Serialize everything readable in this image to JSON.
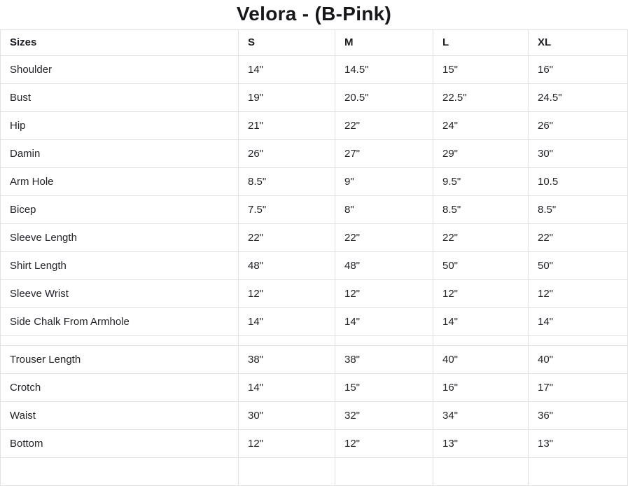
{
  "title": "Velora - (B-Pink)",
  "table": {
    "columns": [
      "Sizes",
      "S",
      "M",
      "L",
      "XL"
    ],
    "rows": [
      {
        "label": "Shoulder",
        "values": [
          "14\"",
          "14.5\"",
          "15\"",
          "16\""
        ]
      },
      {
        "label": "Bust",
        "values": [
          "19\"",
          "20.5\"",
          "22.5\"",
          "24.5\""
        ]
      },
      {
        "label": "Hip",
        "values": [
          "21\"",
          "22\"",
          "24\"",
          "26\""
        ]
      },
      {
        "label": "Damin",
        "values": [
          "26\"",
          "27\"",
          "29\"",
          "30\""
        ]
      },
      {
        "label": "Arm Hole",
        "values": [
          "8.5\"",
          "9\"",
          "9.5\"",
          "10.5"
        ]
      },
      {
        "label": "Bicep",
        "values": [
          "7.5\"",
          "8\"",
          "8.5\"",
          "8.5\""
        ]
      },
      {
        "label": "Sleeve Length",
        "values": [
          "22\"",
          "22\"",
          "22\"",
          "22\""
        ]
      },
      {
        "label": "Shirt Length",
        "values": [
          "48\"",
          "48\"",
          "50\"",
          "50\""
        ]
      },
      {
        "label": "Sleeve Wrist",
        "values": [
          "12\"",
          "12\"",
          "12\"",
          "12\""
        ]
      },
      {
        "label": "Side Chalk From Armhole",
        "values": [
          "14\"",
          "14\"",
          "14\"",
          "14\""
        ]
      },
      {
        "type": "spacer",
        "label": "",
        "values": [
          "",
          "",
          "",
          ""
        ]
      },
      {
        "label": "Trouser Length",
        "values": [
          "38\"",
          "38\"",
          "40\"",
          "40\""
        ]
      },
      {
        "label": "Crotch",
        "values": [
          "14\"",
          "15\"",
          "16\"",
          "17\""
        ]
      },
      {
        "label": "Waist",
        "values": [
          "30\"",
          "32\"",
          "34\"",
          "36\""
        ]
      },
      {
        "label": "Bottom",
        "values": [
          "12\"",
          "12\"",
          "13\"",
          "13\""
        ]
      },
      {
        "type": "clipped",
        "label": "",
        "values": [
          "",
          "",
          "",
          ""
        ]
      }
    ]
  },
  "colors": {
    "background": "#ffffff",
    "border": "#e2e2e2",
    "text": "#23242a",
    "header_text": "#1c1d22",
    "title_text": "#17181c"
  }
}
